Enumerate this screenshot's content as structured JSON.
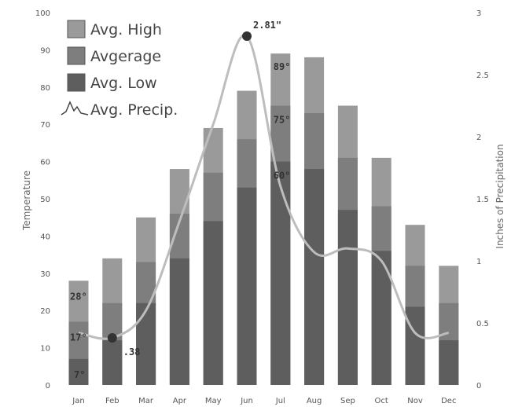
{
  "chart_data": {
    "type": "bar",
    "categories": [
      "Jan",
      "Feb",
      "Mar",
      "Apr",
      "May",
      "Jun",
      "Jul",
      "Aug",
      "Sep",
      "Oct",
      "Nov",
      "Dec"
    ],
    "series": [
      {
        "name": "Avg. High",
        "values": [
          28,
          34,
          45,
          58,
          69,
          79,
          89,
          88,
          75,
          61,
          43,
          32
        ],
        "color": "#9a9a9a"
      },
      {
        "name": "Avgerage",
        "values": [
          17,
          22,
          33,
          46,
          57,
          66,
          75,
          73,
          61,
          48,
          32,
          22
        ],
        "color": "#7e7e7e"
      },
      {
        "name": "Avg. Low",
        "values": [
          7,
          12,
          22,
          34,
          44,
          53,
          60,
          58,
          47,
          36,
          21,
          12
        ],
        "color": "#5e5e5e"
      },
      {
        "name": "Avg. Precip.",
        "type": "line",
        "axis": "right",
        "values": [
          0.42,
          0.38,
          0.6,
          1.32,
          2.1,
          2.81,
          1.6,
          1.07,
          1.1,
          1.0,
          0.42,
          0.42
        ],
        "color": "#bdbdbd"
      }
    ],
    "ylabel": "Temperature",
    "ylabel_right": "Inches of Precipitation",
    "ylim": [
      0,
      100
    ],
    "y_ticks": [
      "0",
      "10",
      "20",
      "30",
      "40",
      "50",
      "60",
      "70",
      "80",
      "90",
      "100"
    ],
    "ylim_right": [
      0,
      3
    ],
    "y_ticks_right": [
      "0",
      "0.5",
      "1",
      "1.5",
      "2",
      "2.5",
      "3"
    ],
    "legend_position": "top-left",
    "grid": false,
    "annotations": [
      {
        "text": "28°",
        "series": 0,
        "index": 0
      },
      {
        "text": "17°",
        "series": 1,
        "index": 0
      },
      {
        "text": "7°",
        "series": 2,
        "index": 0
      },
      {
        "text": "89°",
        "series": 0,
        "index": 6
      },
      {
        "text": "75°",
        "series": 1,
        "index": 6
      },
      {
        "text": "60°",
        "series": 2,
        "index": 6
      },
      {
        "text": ".38",
        "series": 3,
        "index": 1
      },
      {
        "text": "2.81\"",
        "series": 3,
        "index": 5
      }
    ]
  }
}
